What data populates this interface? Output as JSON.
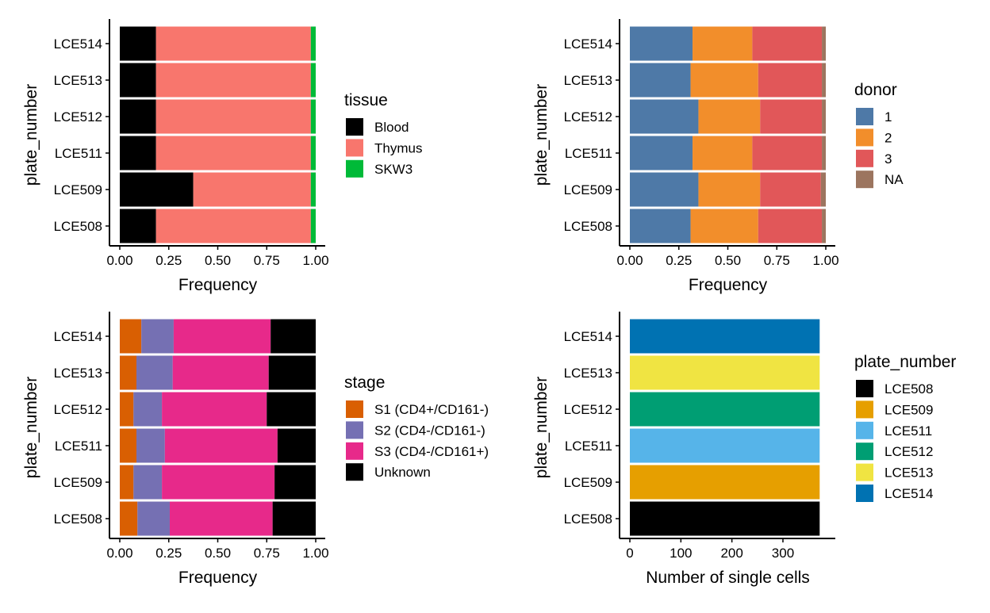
{
  "chart_data": [
    {
      "type": "bar",
      "orientation": "horizontal",
      "stacked": true,
      "normalized": true,
      "categories": [
        "LCE514",
        "LCE513",
        "LCE512",
        "LCE511",
        "LCE509",
        "LCE508"
      ],
      "xlabel": "Frequency",
      "ylabel": "plate_number",
      "xlim": [
        0,
        1
      ],
      "xticks": [
        "0.00",
        "0.25",
        "0.50",
        "0.75",
        "1.00"
      ],
      "legend_title": "tissue",
      "legend_placement": "right",
      "series": [
        {
          "name": "Blood",
          "color": "#000000",
          "values": [
            0.185,
            0.185,
            0.185,
            0.185,
            0.375,
            0.185
          ]
        },
        {
          "name": "Thymus",
          "color": "#F8766D",
          "values": [
            0.79,
            0.79,
            0.79,
            0.79,
            0.6,
            0.79
          ]
        },
        {
          "name": "SKW3",
          "color": "#00BA38",
          "values": [
            0.025,
            0.025,
            0.025,
            0.025,
            0.025,
            0.025
          ]
        }
      ]
    },
    {
      "type": "bar",
      "orientation": "horizontal",
      "stacked": true,
      "normalized": true,
      "categories": [
        "LCE514",
        "LCE513",
        "LCE512",
        "LCE511",
        "LCE509",
        "LCE508"
      ],
      "xlabel": "Frequency",
      "ylabel": "plate_number",
      "xlim": [
        0,
        1
      ],
      "xticks": [
        "0.00",
        "0.25",
        "0.50",
        "0.75",
        "1.00"
      ],
      "legend_title": "donor",
      "legend_placement": "right",
      "series": [
        {
          "name": "1",
          "color": "#4E79A7",
          "values": [
            0.32,
            0.31,
            0.35,
            0.32,
            0.35,
            0.31
          ]
        },
        {
          "name": "2",
          "color": "#F28E2B",
          "values": [
            0.305,
            0.345,
            0.315,
            0.305,
            0.315,
            0.345
          ]
        },
        {
          "name": "3",
          "color": "#E15759",
          "values": [
            0.355,
            0.325,
            0.315,
            0.355,
            0.31,
            0.325
          ]
        },
        {
          "name": "NA",
          "color": "#9C755F",
          "values": [
            0.02,
            0.02,
            0.02,
            0.02,
            0.025,
            0.02
          ]
        }
      ]
    },
    {
      "type": "bar",
      "orientation": "horizontal",
      "stacked": true,
      "normalized": true,
      "categories": [
        "LCE514",
        "LCE513",
        "LCE512",
        "LCE511",
        "LCE509",
        "LCE508"
      ],
      "xlabel": "Frequency",
      "ylabel": "plate_number",
      "xlim": [
        0,
        1
      ],
      "xticks": [
        "0.00",
        "0.25",
        "0.50",
        "0.75",
        "1.00"
      ],
      "legend_title": "stage",
      "legend_placement": "right",
      "series": [
        {
          "name": "S1 (CD4+/CD161-)",
          "color": "#D95F02",
          "values": [
            0.11,
            0.085,
            0.07,
            0.085,
            0.07,
            0.09
          ]
        },
        {
          "name": "S2 (CD4-/CD161-)",
          "color": "#7570B3",
          "values": [
            0.165,
            0.185,
            0.145,
            0.145,
            0.145,
            0.165
          ]
        },
        {
          "name": "S3 (CD4-/CD161+)",
          "color": "#E7298A",
          "values": [
            0.495,
            0.49,
            0.535,
            0.575,
            0.575,
            0.525
          ]
        },
        {
          "name": "Unknown",
          "color": "#000000",
          "values": [
            0.23,
            0.24,
            0.25,
            0.195,
            0.21,
            0.22
          ]
        }
      ]
    },
    {
      "type": "bar",
      "orientation": "horizontal",
      "stacked": false,
      "categories": [
        "LCE514",
        "LCE513",
        "LCE512",
        "LCE511",
        "LCE509",
        "LCE508"
      ],
      "xlabel": "Number of single cells",
      "ylabel": "plate_number",
      "xlim": [
        0,
        384
      ],
      "xticks": [
        "0",
        "100",
        "200",
        "300"
      ],
      "legend_title": "plate_number",
      "legend_placement": "right",
      "values": [
        372,
        372,
        372,
        372,
        372,
        372
      ],
      "colors": [
        "#0072B2",
        "#F0E442",
        "#009E73",
        "#56B4E9",
        "#E69F00",
        "#000000"
      ],
      "legend": [
        {
          "name": "LCE508",
          "color": "#000000"
        },
        {
          "name": "LCE509",
          "color": "#E69F00"
        },
        {
          "name": "LCE511",
          "color": "#56B4E9"
        },
        {
          "name": "LCE512",
          "color": "#009E73"
        },
        {
          "name": "LCE513",
          "color": "#F0E442"
        },
        {
          "name": "LCE514",
          "color": "#0072B2"
        }
      ]
    }
  ]
}
